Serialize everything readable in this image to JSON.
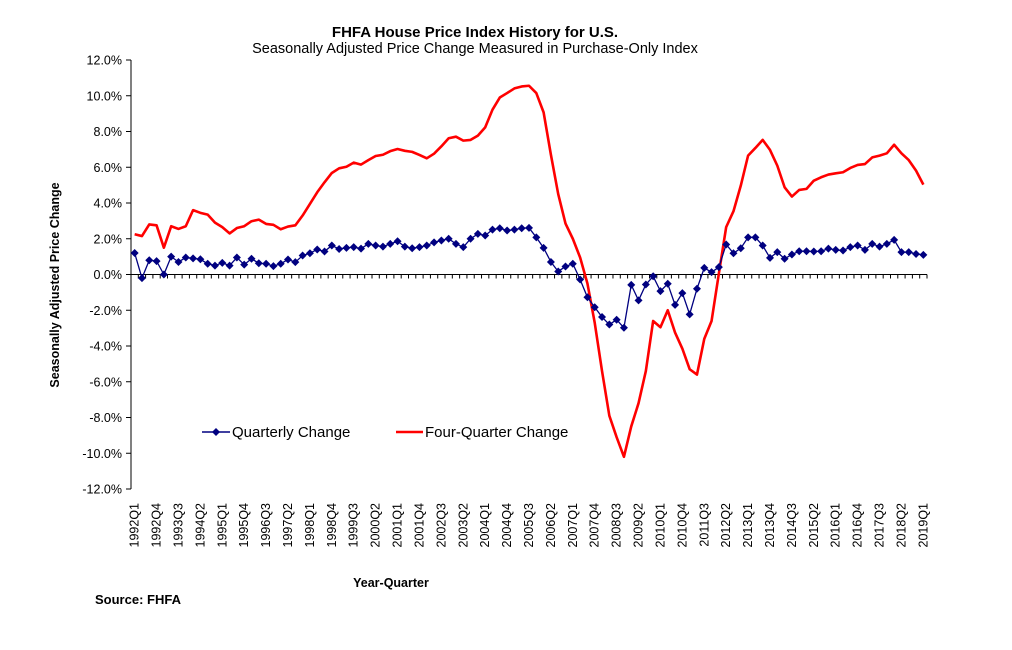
{
  "chart_data": {
    "type": "line",
    "title": "FHFA House Price Index History for U.S.",
    "subtitle": "Seasonally Adjusted Price Change Measured in Purchase-Only Index",
    "xlabel": "Year-Quarter",
    "ylabel": "Seasonally Adjusted Price Change",
    "source": "Source:  FHFA",
    "ylim": [
      -12,
      12
    ],
    "y_ticks": [
      "12.0%",
      "10.0%",
      "8.0%",
      "6.0%",
      "4.0%",
      "2.0%",
      "0.0%",
      "-2.0%",
      "-4.0%",
      "-6.0%",
      "-8.0%",
      "-10.0%",
      "-12.0%"
    ],
    "y_tick_values": [
      12,
      10,
      8,
      6,
      4,
      2,
      0,
      -2,
      -4,
      -6,
      -8,
      -10,
      -12
    ],
    "x_start": {
      "year": 1992,
      "quarter": 1
    },
    "x_count": 109,
    "x_tick_labels": [
      "1992Q1",
      "1992Q4",
      "1993Q3",
      "1994Q2",
      "1995Q1",
      "1995Q4",
      "1996Q3",
      "1997Q2",
      "1998Q1",
      "1998Q4",
      "1999Q3",
      "2000Q2",
      "2001Q1",
      "2001Q4",
      "2002Q3",
      "2003Q2",
      "2004Q1",
      "2004Q4",
      "2005Q3",
      "2006Q2",
      "2007Q1",
      "2007Q4",
      "2008Q3",
      "2009Q2",
      "2010Q1",
      "2010Q4",
      "2011Q3",
      "2012Q2",
      "2013Q1",
      "2013Q4",
      "2014Q3",
      "2015Q2",
      "2016Q1",
      "2016Q4",
      "2017Q3",
      "2018Q2",
      "2019Q1"
    ],
    "x_tick_every": 3,
    "grid": false,
    "legend": {
      "placement": "bottom-left inside plot",
      "entries": [
        "Quarterly Change",
        "Four-Quarter Change"
      ]
    },
    "series": [
      {
        "name": "Quarterly Change",
        "color": "#000080",
        "marker": "diamond",
        "values": [
          1.2,
          -0.2,
          0.8,
          0.75,
          0.0,
          1.0,
          0.7,
          0.95,
          0.9,
          0.85,
          0.6,
          0.5,
          0.65,
          0.5,
          0.95,
          0.55,
          0.88,
          0.63,
          0.6,
          0.47,
          0.6,
          0.84,
          0.69,
          1.06,
          1.19,
          1.4,
          1.29,
          1.62,
          1.43,
          1.49,
          1.53,
          1.45,
          1.71,
          1.62,
          1.56,
          1.71,
          1.86,
          1.56,
          1.47,
          1.53,
          1.62,
          1.8,
          1.9,
          2.0,
          1.71,
          1.53,
          2.0,
          2.27,
          2.18,
          2.51,
          2.59,
          2.46,
          2.51,
          2.59,
          2.61,
          2.08,
          1.49,
          0.7,
          0.17,
          0.45,
          0.6,
          -0.28,
          -1.27,
          -1.83,
          -2.38,
          -2.8,
          -2.53,
          -2.98,
          -0.58,
          -1.45,
          -0.56,
          -0.1,
          -0.93,
          -0.52,
          -1.7,
          -1.04,
          -2.23,
          -0.8,
          0.37,
          0.13,
          0.41,
          1.68,
          1.19,
          1.47,
          2.08,
          2.08,
          1.62,
          0.93,
          1.25,
          0.88,
          1.12,
          1.3,
          1.3,
          1.29,
          1.3,
          1.45,
          1.38,
          1.34,
          1.53,
          1.62,
          1.38,
          1.71,
          1.56,
          1.71,
          1.94,
          1.25,
          1.25,
          1.15,
          1.1
        ]
      },
      {
        "name": "Four-Quarter Change",
        "color": "#ff0000",
        "marker": "none",
        "values": [
          2.25,
          2.15,
          2.8,
          2.75,
          1.5,
          2.7,
          2.55,
          2.7,
          3.6,
          3.45,
          3.35,
          2.9,
          2.65,
          2.3,
          2.6,
          2.7,
          2.98,
          3.07,
          2.83,
          2.78,
          2.53,
          2.68,
          2.75,
          3.3,
          3.95,
          4.6,
          5.16,
          5.68,
          5.94,
          6.03,
          6.26,
          6.15,
          6.4,
          6.63,
          6.7,
          6.9,
          7.02,
          6.92,
          6.86,
          6.69,
          6.5,
          6.76,
          7.17,
          7.62,
          7.71,
          7.49,
          7.53,
          7.77,
          8.23,
          9.22,
          9.9,
          10.15,
          10.41,
          10.52,
          10.56,
          10.15,
          9.07,
          6.7,
          4.5,
          2.85,
          2.0,
          0.95,
          -0.5,
          -2.7,
          -5.4,
          -7.9,
          -9.1,
          -10.2,
          -8.5,
          -7.2,
          -5.4,
          -2.6,
          -2.95,
          -2.0,
          -3.25,
          -4.15,
          -5.3,
          -5.6,
          -3.6,
          -2.6,
          0.05,
          2.65,
          3.54,
          4.97,
          6.65,
          7.08,
          7.53,
          6.97,
          6.09,
          4.88,
          4.36,
          4.73,
          4.79,
          5.25,
          5.44,
          5.59,
          5.66,
          5.72,
          5.96,
          6.13,
          6.18,
          6.55,
          6.65,
          6.78,
          7.26,
          6.78,
          6.4,
          5.81,
          5.03
        ]
      }
    ]
  }
}
